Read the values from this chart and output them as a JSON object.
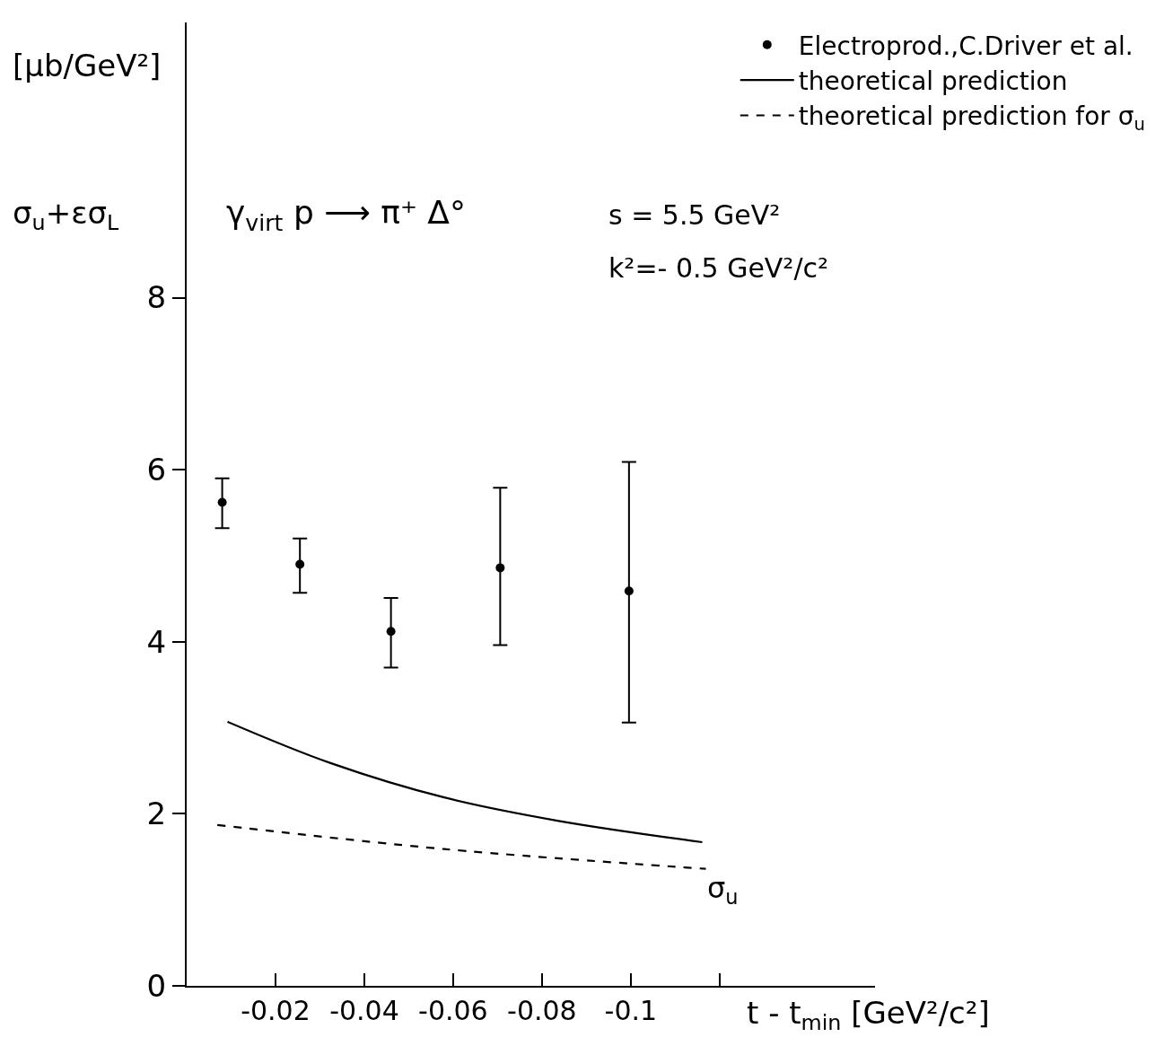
{
  "chart_data": {
    "type": "scatter",
    "xlabel": "t - t$_{min}$ [GeV²/c²]",
    "ylabel": "σ$_{u}$+εσ$_{L}$",
    "xlim": [
      0,
      -0.155
    ],
    "ylim": [
      0,
      11.2
    ],
    "xticks": [
      {
        "value": -0.02,
        "label": "-0.02"
      },
      {
        "value": -0.04,
        "label": "-0.04"
      },
      {
        "value": -0.06,
        "label": "-0.06"
      },
      {
        "value": -0.08,
        "label": "-0.08"
      },
      {
        "value": -0.1,
        "label": "-0.1"
      },
      {
        "value": -0.12,
        "label": null
      }
    ],
    "yticks": [
      0,
      2,
      4,
      6,
      8
    ],
    "legend": "top right",
    "series": [
      {
        "name": "Electroprod.,C.Driver et al.",
        "color": "#000000",
        "marker": "circle",
        "x": [
          -0.008,
          -0.0255,
          -0.046,
          -0.0706,
          -0.0996
        ],
        "values": [
          5.62,
          4.9,
          4.12,
          4.86,
          4.59
        ],
        "errors": [
          [
            5.32,
            5.9
          ],
          [
            4.57,
            5.2
          ],
          [
            3.7,
            4.51
          ],
          [
            3.96,
            5.79
          ],
          [
            3.06,
            6.09
          ]
        ]
      },
      {
        "name": "theoretical prediction",
        "type": "line",
        "color": "#000000",
        "line_style": "solid",
        "x": [
          -0.0092,
          -0.0324,
          -0.058,
          -0.0835,
          -0.1161
        ],
        "values": [
          3.07,
          2.59,
          2.19,
          1.92,
          1.67
        ]
      },
      {
        "name": "theoretical prediction for σ$_{u}$",
        "type": "line",
        "color": "#000000",
        "line_style": "dashed",
        "x": [
          -0.0069,
          -0.058,
          -0.1169
        ],
        "values": [
          1.87,
          1.59,
          1.36
        ]
      }
    ],
    "annotations": [
      "[μb/GeV²]",
      "γ$_{virt}$ p ⟶ π⁺ Δ°",
      "s = 5.5 GeV²",
      "k²=- 0.5 GeV²/c²",
      {
        "text": "σ$_{u}$",
        "x": -0.1169,
        "y": 1.36
      }
    ]
  }
}
